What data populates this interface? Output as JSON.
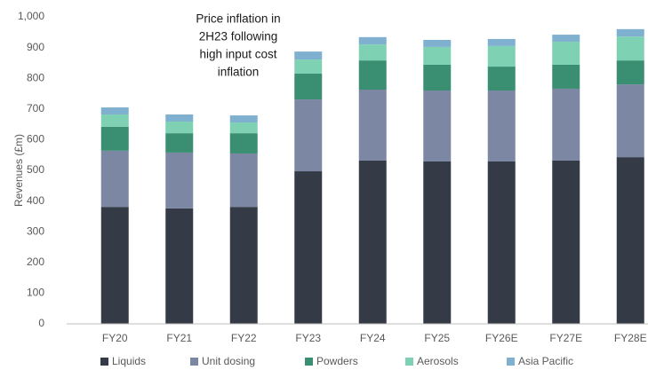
{
  "chart_data": {
    "type": "stacked_bar",
    "annotation_lines": [
      "Price inflation in",
      "2H23 following",
      "high input cost",
      "inflation"
    ],
    "ylabel": "Revenues (£m)",
    "categories": [
      "FY20",
      "FY21",
      "FY22",
      "FY23",
      "FY24",
      "FY25",
      "FY26E",
      "FY27E",
      "FY28E"
    ],
    "series": [
      {
        "name": "Liquids",
        "color": "#343a46",
        "values": [
          381,
          376,
          381,
          497,
          532,
          529,
          529,
          532,
          543
        ]
      },
      {
        "name": "Unit dosing",
        "color": "#7b87a3",
        "values": [
          183,
          182,
          174,
          234,
          231,
          231,
          231,
          234,
          237
        ]
      },
      {
        "name": "Powders",
        "color": "#3a8f72",
        "values": [
          78,
          63,
          66,
          84,
          95,
          84,
          78,
          78,
          78
        ]
      },
      {
        "name": "Aerosols",
        "color": "#7fd1b3",
        "values": [
          40,
          38,
          35,
          46,
          52,
          58,
          67,
          75,
          78
        ]
      },
      {
        "name": "Asia Pacific",
        "color": "#7fb0d0",
        "values": [
          23,
          23,
          23,
          26,
          24,
          23,
          23,
          23,
          24
        ]
      }
    ],
    "ylim": [
      0,
      1000
    ],
    "yticks": [
      0,
      100,
      200,
      300,
      400,
      500,
      600,
      700,
      800,
      900,
      {
        "value": 1000,
        "label": "1,000"
      }
    ],
    "grid": false
  }
}
